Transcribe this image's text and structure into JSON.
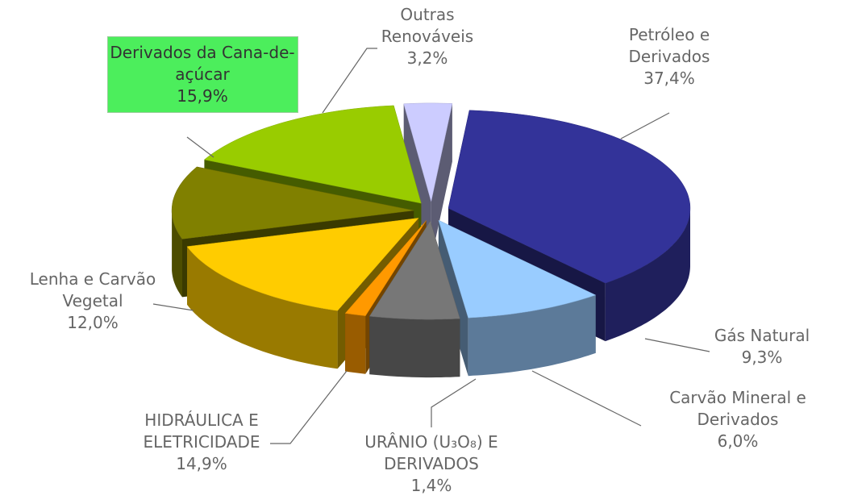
{
  "chart_data": {
    "type": "pie3d",
    "categories": [
      "Petróleo e Derivados",
      "Gás Natural",
      "Carvão Mineral e Derivados",
      "URÂNIO (U₃O₈) E DERIVADOS",
      "HIDRÁULICA E ELETRICIDADE",
      "Lenha e Carvão Vegetal",
      "Derivados da Cana-de-açúcar",
      "Outras Renováveis"
    ],
    "values": [
      37.4,
      9.3,
      6.0,
      1.4,
      14.9,
      12.0,
      15.9,
      3.2
    ],
    "value_labels": [
      "37,4%",
      "9,3%",
      "6,0%",
      "1,4%",
      "14,9%",
      "12,0%",
      "15,9%",
      "3,2%"
    ],
    "colors": [
      "#333399",
      "#99ccff",
      "#777777",
      "#ff9900",
      "#ffcc00",
      "#808000",
      "#99cc00",
      "#ccccff"
    ]
  }
}
